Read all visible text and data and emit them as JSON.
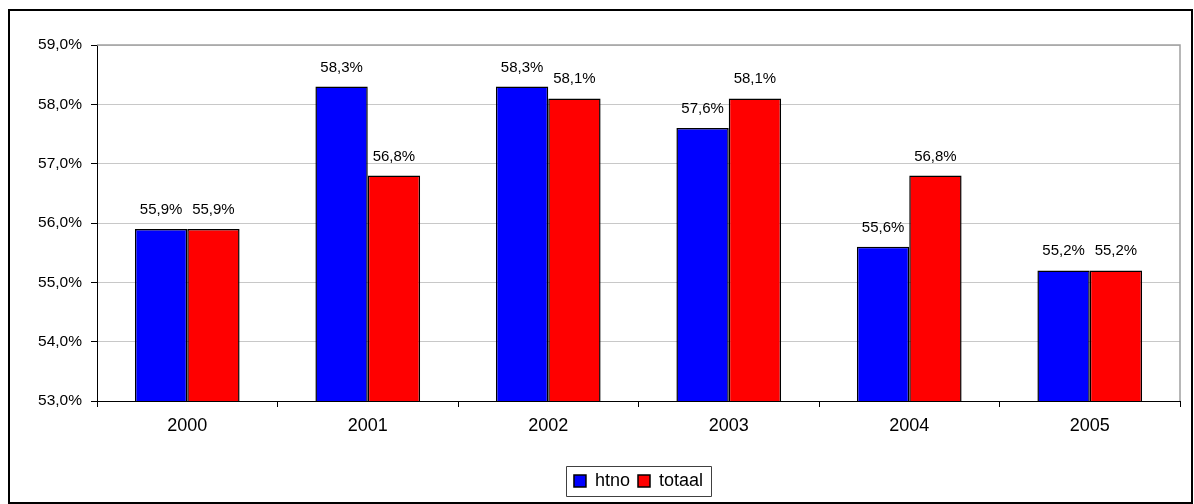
{
  "chart_data": {
    "type": "bar",
    "categories": [
      "2000",
      "2001",
      "2002",
      "2003",
      "2004",
      "2005"
    ],
    "series": [
      {
        "name": "htno",
        "color": "#0000ff",
        "values": [
          55.9,
          58.3,
          58.3,
          57.6,
          55.6,
          55.2
        ],
        "value_labels": [
          "55,9%",
          "58,3%",
          "58,3%",
          "57,6%",
          "55,6%",
          "55,2%"
        ]
      },
      {
        "name": "totaal",
        "color": "#ff0000",
        "values": [
          55.9,
          56.8,
          58.1,
          58.1,
          56.8,
          55.2
        ],
        "value_labels": [
          "55,9%",
          "56,8%",
          "58,1%",
          "58,1%",
          "56,8%",
          "55,2%"
        ]
      }
    ],
    "ylim": [
      53,
      59
    ],
    "yticks": [
      {
        "value": 53,
        "label": "53,0%"
      },
      {
        "value": 54,
        "label": "54,0%"
      },
      {
        "value": 55,
        "label": "55,0%"
      },
      {
        "value": 56,
        "label": "56,0%"
      },
      {
        "value": 57,
        "label": "57,0%"
      },
      {
        "value": 58,
        "label": "58,0%"
      },
      {
        "value": 59,
        "label": "59,0%"
      }
    ],
    "grid": "y",
    "legend": "bottom"
  }
}
